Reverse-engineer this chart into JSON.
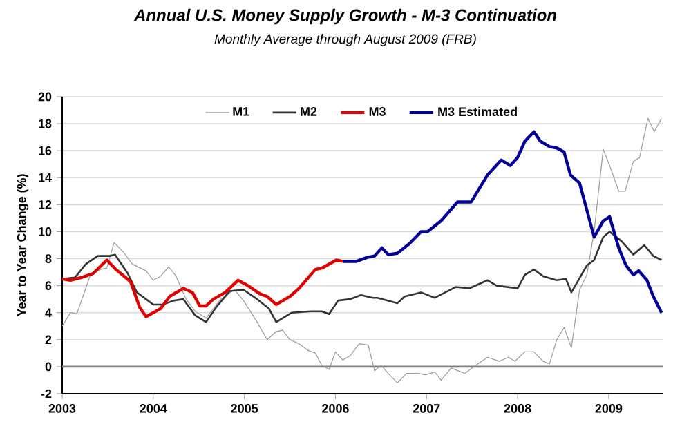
{
  "chart_data": {
    "type": "line",
    "title": "Annual U.S. Money Supply Growth - M-3 Continuation",
    "subtitle": "Monthly Average through August 2009 (FRB)",
    "ylabel": "Year to Year Change (%)",
    "xlim": [
      2003,
      2009.6
    ],
    "xticks": [
      2003,
      2004,
      2005,
      2006,
      2007,
      2008,
      2009
    ],
    "ylim": [
      -2,
      20
    ],
    "yticks": [
      -2,
      0,
      2,
      4,
      6,
      8,
      10,
      12,
      14,
      16,
      18,
      20
    ],
    "grid": "y",
    "legend": "top",
    "marker": "none",
    "line_style": "solid",
    "ref_lines": [
      {
        "axis": "y",
        "value": 0,
        "color": "#808080"
      }
    ],
    "series": [
      {
        "name": "M1",
        "color": "#999999",
        "x": [
          2003.0,
          2003.09,
          2003.16,
          2003.31,
          2003.42,
          2003.49,
          2003.57,
          2003.67,
          2003.77,
          2003.92,
          2004.0,
          2004.08,
          2004.17,
          2004.25,
          2004.36,
          2004.46,
          2004.58,
          2004.74,
          2004.89,
          2004.99,
          2005.14,
          2005.25,
          2005.35,
          2005.42,
          2005.5,
          2005.6,
          2005.7,
          2005.78,
          2005.85,
          2005.93,
          2006.0,
          2006.08,
          2006.16,
          2006.26,
          2006.36,
          2006.43,
          2006.5,
          2006.58,
          2006.68,
          2006.78,
          2006.91,
          2006.99,
          2007.09,
          2007.16,
          2007.27,
          2007.42,
          2007.54,
          2007.67,
          2007.8,
          2007.9,
          2007.97,
          2008.08,
          2008.18,
          2008.28,
          2008.35,
          2008.43,
          2008.51,
          2008.59,
          2008.68,
          2008.76,
          2008.84,
          2008.94,
          2009.01,
          2009.11,
          2009.18,
          2009.27,
          2009.34,
          2009.43,
          2009.5,
          2009.58
        ],
        "values": [
          3.0,
          4.0,
          3.9,
          6.8,
          7.2,
          7.3,
          9.2,
          8.5,
          7.6,
          7.1,
          6.4,
          6.7,
          7.4,
          6.7,
          5.0,
          4.1,
          3.6,
          5.0,
          5.7,
          4.9,
          3.3,
          2.0,
          2.6,
          2.7,
          2.0,
          1.7,
          1.2,
          1.0,
          0.1,
          -0.2,
          1.1,
          0.5,
          0.8,
          1.7,
          1.6,
          -0.3,
          0.1,
          -0.5,
          -1.2,
          -0.5,
          -0.5,
          -0.6,
          -0.4,
          -1.0,
          -0.1,
          -0.5,
          0.1,
          0.7,
          0.4,
          0.7,
          0.4,
          1.1,
          1.1,
          0.4,
          0.2,
          2.0,
          2.9,
          1.4,
          5.7,
          6.8,
          10.0,
          16.1,
          14.9,
          13.0,
          13.0,
          15.2,
          15.5,
          18.4,
          17.4,
          18.4
        ]
      },
      {
        "name": "M2",
        "color": "#333333",
        "x": [
          2003.0,
          2003.14,
          2003.26,
          2003.39,
          2003.52,
          2003.58,
          2003.72,
          2003.82,
          2004.0,
          2004.1,
          2004.23,
          2004.33,
          2004.46,
          2004.58,
          2004.69,
          2004.84,
          2004.99,
          2005.14,
          2005.27,
          2005.35,
          2005.52,
          2005.73,
          2005.85,
          2005.93,
          2006.03,
          2006.16,
          2006.28,
          2006.41,
          2006.46,
          2006.68,
          2006.76,
          2006.94,
          2007.09,
          2007.32,
          2007.47,
          2007.67,
          2007.77,
          2008.0,
          2008.08,
          2008.18,
          2008.28,
          2008.43,
          2008.53,
          2008.59,
          2008.76,
          2008.84,
          2008.94,
          2009.01,
          2009.14,
          2009.27,
          2009.39,
          2009.49,
          2009.58
        ],
        "values": [
          6.5,
          6.6,
          7.6,
          8.2,
          8.2,
          8.3,
          6.9,
          5.5,
          4.6,
          4.6,
          4.9,
          5.0,
          3.8,
          3.3,
          4.4,
          5.6,
          5.7,
          5.0,
          4.3,
          3.3,
          4.0,
          4.1,
          4.1,
          3.9,
          4.9,
          5.0,
          5.3,
          5.1,
          5.1,
          4.7,
          5.2,
          5.5,
          5.1,
          5.9,
          5.8,
          6.4,
          6.0,
          5.8,
          6.8,
          7.2,
          6.7,
          6.4,
          6.5,
          5.5,
          7.5,
          7.9,
          9.6,
          10.0,
          9.3,
          8.3,
          9.0,
          8.2,
          7.9
        ]
      },
      {
        "name": "M3",
        "color": "#e00000",
        "x": [
          2003.0,
          2003.09,
          2003.21,
          2003.34,
          2003.49,
          2003.59,
          2003.75,
          2003.85,
          2003.92,
          2004.08,
          2004.18,
          2004.33,
          2004.43,
          2004.51,
          2004.58,
          2004.66,
          2004.79,
          2004.93,
          2005.04,
          2005.17,
          2005.25,
          2005.35,
          2005.5,
          2005.6,
          2005.78,
          2005.85,
          2006.01,
          2006.08
        ],
        "values": [
          6.5,
          6.4,
          6.6,
          6.9,
          7.9,
          7.2,
          6.3,
          4.4,
          3.7,
          4.3,
          5.2,
          5.8,
          5.5,
          4.5,
          4.5,
          5.0,
          5.5,
          6.4,
          6.0,
          5.4,
          5.2,
          4.6,
          5.2,
          5.8,
          7.2,
          7.3,
          7.9,
          7.8
        ]
      },
      {
        "name": "M3 Estimated",
        "color": "#000099",
        "x": [
          2006.08,
          2006.23,
          2006.35,
          2006.43,
          2006.51,
          2006.58,
          2006.68,
          2006.81,
          2006.94,
          2007.01,
          2007.16,
          2007.34,
          2007.49,
          2007.67,
          2007.82,
          2007.92,
          2008.0,
          2008.08,
          2008.18,
          2008.25,
          2008.35,
          2008.43,
          2008.51,
          2008.58,
          2008.68,
          2008.84,
          2008.94,
          2009.01,
          2009.11,
          2009.19,
          2009.27,
          2009.33,
          2009.42,
          2009.49,
          2009.58
        ],
        "values": [
          7.8,
          7.8,
          8.1,
          8.2,
          8.8,
          8.3,
          8.4,
          9.1,
          10.0,
          10.0,
          10.8,
          12.2,
          12.2,
          14.2,
          15.3,
          14.9,
          15.5,
          16.7,
          17.4,
          16.7,
          16.3,
          16.2,
          15.9,
          14.2,
          13.6,
          9.6,
          10.8,
          11.1,
          8.8,
          7.5,
          6.8,
          7.1,
          6.4,
          5.2,
          4.0
        ]
      }
    ]
  }
}
